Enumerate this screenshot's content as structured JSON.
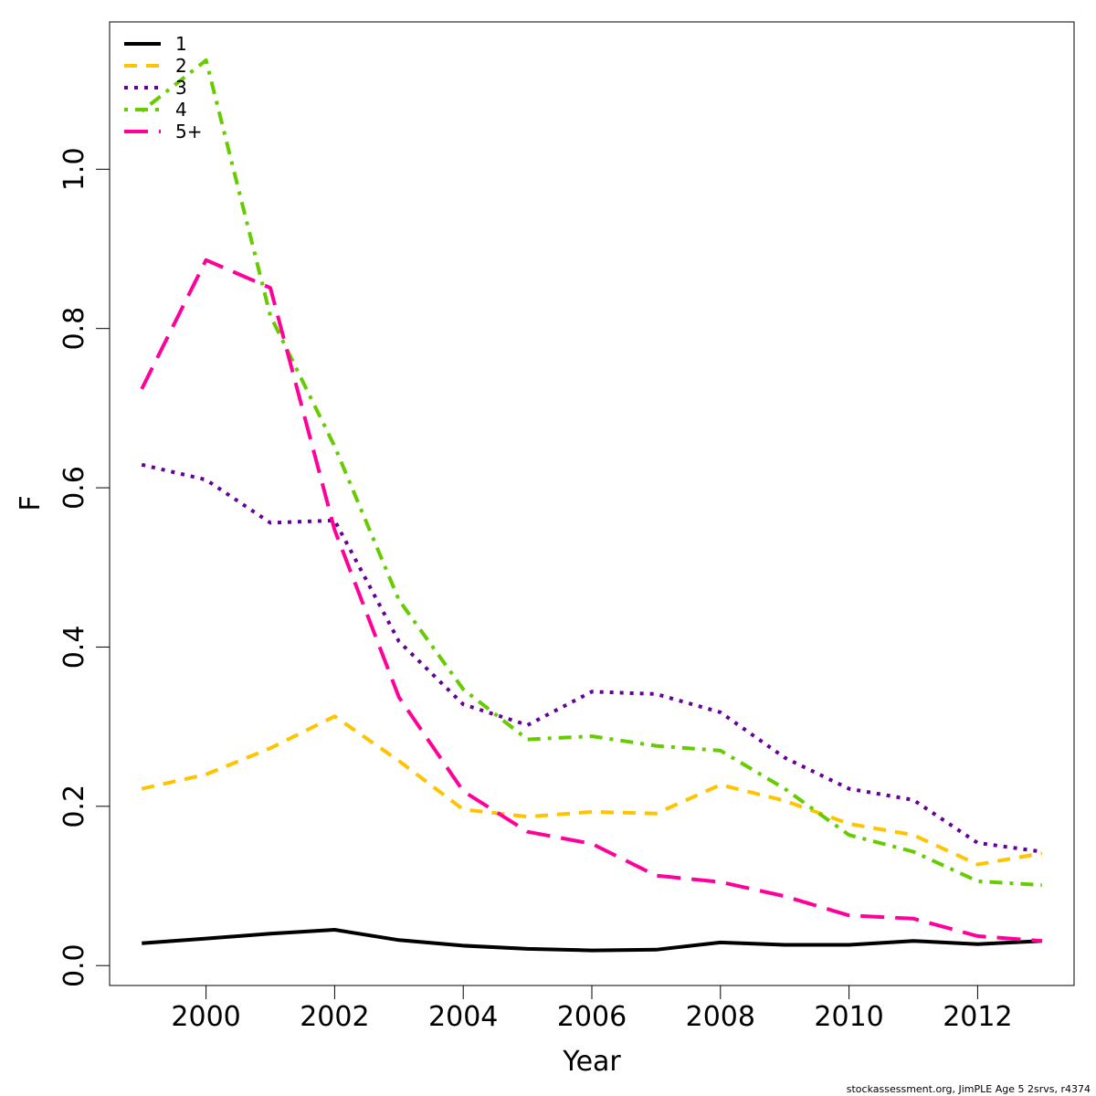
{
  "chart_data": {
    "type": "line",
    "xlabel": "Year",
    "ylabel": "F",
    "xlim": [
      1998.5,
      2013.5
    ],
    "ylim": [
      -0.025,
      1.185
    ],
    "x_ticks": [
      2000,
      2002,
      2004,
      2006,
      2008,
      2010,
      2012
    ],
    "y_ticks": [
      0.0,
      0.2,
      0.4,
      0.6,
      0.8,
      1.0
    ],
    "y_tick_labels": [
      "0.0",
      "0.2",
      "0.4",
      "0.6",
      "0.8",
      "1.0"
    ],
    "grid": false,
    "legend_position": "top-left",
    "x": [
      1999,
      2000,
      2001,
      2002,
      2003,
      2004,
      2005,
      2006,
      2007,
      2008,
      2009,
      2010,
      2011,
      2012,
      2013
    ],
    "series": [
      {
        "name": "1",
        "color": "#000000",
        "dash": "solid",
        "values": [
          0.028,
          0.034,
          0.04,
          0.045,
          0.032,
          0.025,
          0.021,
          0.019,
          0.02,
          0.029,
          0.026,
          0.026,
          0.031,
          0.027,
          0.031
        ]
      },
      {
        "name": "2",
        "color": "#FFC400",
        "dash": "dashed",
        "values": [
          0.222,
          0.24,
          0.273,
          0.313,
          0.257,
          0.196,
          0.187,
          0.193,
          0.191,
          0.227,
          0.207,
          0.178,
          0.164,
          0.127,
          0.141
        ]
      },
      {
        "name": "3",
        "color": "#660099",
        "dash": "dotted",
        "values": [
          0.629,
          0.61,
          0.556,
          0.559,
          0.407,
          0.328,
          0.302,
          0.344,
          0.341,
          0.318,
          0.261,
          0.222,
          0.208,
          0.154,
          0.143
        ]
      },
      {
        "name": "4",
        "color": "#66CC00",
        "dash": "dotdash",
        "values": [
          1.073,
          1.137,
          0.816,
          0.652,
          0.459,
          0.347,
          0.284,
          0.288,
          0.276,
          0.27,
          0.222,
          0.164,
          0.143,
          0.106,
          0.101
        ]
      },
      {
        "name": "5+",
        "color": "#FF0099",
        "dash": "longdash",
        "values": [
          0.724,
          0.886,
          0.851,
          0.547,
          0.337,
          0.219,
          0.168,
          0.153,
          0.113,
          0.105,
          0.087,
          0.063,
          0.059,
          0.037,
          0.031
        ]
      }
    ]
  },
  "footer": "stockassessment.org, JimPLE Age 5 2srvs, r4374"
}
